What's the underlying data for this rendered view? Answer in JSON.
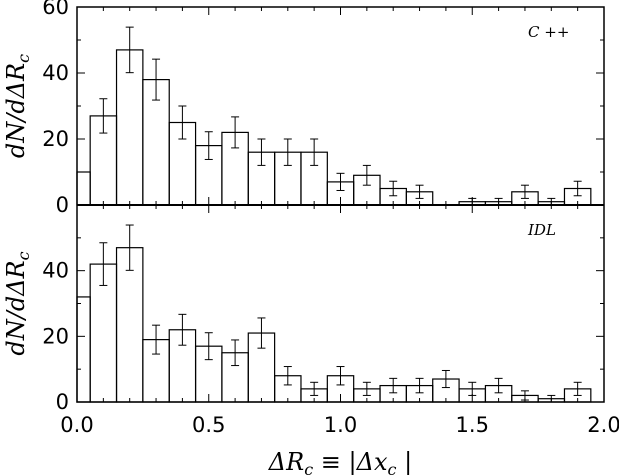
{
  "chart_data": [
    {
      "type": "bar",
      "panel": "top",
      "annotation": "C ++",
      "ylabel": "dN/dΔR_c",
      "xlim": [
        0.0,
        2.0
      ],
      "ylim": [
        0,
        60
      ],
      "yticks": [
        "0",
        "20",
        "40",
        "60"
      ],
      "bin_width": 0.1,
      "bin_starts": [
        -0.05,
        0.05,
        0.15,
        0.25,
        0.35,
        0.45,
        0.55,
        0.65,
        0.75,
        0.85,
        0.95,
        1.05,
        1.15,
        1.25,
        1.35,
        1.45,
        1.55,
        1.65,
        1.75,
        1.85
      ],
      "values": [
        10,
        27,
        47,
        38,
        25,
        18,
        22,
        16,
        16,
        16,
        7,
        9,
        5,
        4,
        0,
        1,
        1,
        4,
        1,
        5
      ],
      "errors": [
        3.2,
        5.2,
        6.9,
        6.2,
        5.0,
        4.2,
        4.7,
        4.0,
        4.0,
        4.0,
        2.6,
        3.0,
        2.2,
        2.0,
        0,
        1.0,
        1.0,
        2.0,
        1.0,
        2.2
      ]
    },
    {
      "type": "bar",
      "panel": "bottom",
      "annotation": "IDL",
      "ylabel": "dN/dΔR_c",
      "xlabel": "ΔR_c ≡ |Δx_c |",
      "xlim": [
        0.0,
        2.0
      ],
      "ylim": [
        0,
        60
      ],
      "yticks": [
        "0",
        "20",
        "40"
      ],
      "xticks": [
        "0.0",
        "0.5",
        "1.0",
        "1.5",
        "2.0"
      ],
      "bin_width": 0.1,
      "bin_starts": [
        -0.05,
        0.05,
        0.15,
        0.25,
        0.35,
        0.45,
        0.55,
        0.65,
        0.75,
        0.85,
        0.95,
        1.05,
        1.15,
        1.25,
        1.35,
        1.45,
        1.55,
        1.65,
        1.75,
        1.85
      ],
      "values": [
        32,
        42,
        47,
        19,
        22,
        17,
        15,
        21,
        8,
        4,
        8,
        4,
        5,
        5,
        7,
        4,
        5,
        2,
        1,
        4
      ],
      "errors": [
        5.7,
        6.5,
        6.9,
        4.4,
        4.7,
        4.1,
        3.9,
        4.6,
        2.8,
        2.0,
        2.8,
        2.0,
        2.2,
        2.2,
        2.6,
        2.0,
        2.2,
        1.4,
        1.0,
        2.0
      ]
    }
  ]
}
